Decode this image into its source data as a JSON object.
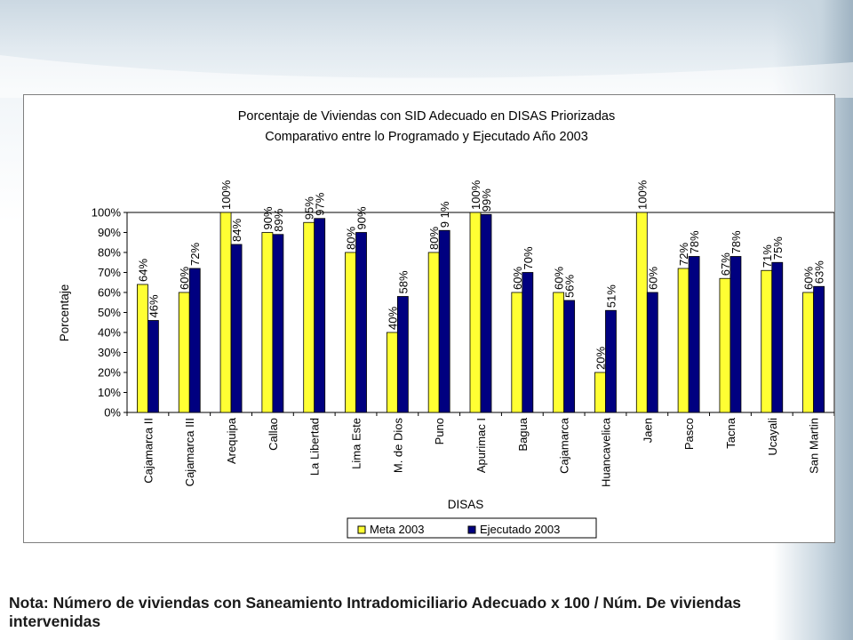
{
  "note": "Nota: Número de viviendas con Saneamiento Intradomiciliario Adecuado x 100 / Núm. De viviendas intervenidas",
  "colors": {
    "meta": "#ffff33",
    "ejecutado": "#000080",
    "plot_border": "#000000",
    "frame_border": "#7f7f7f"
  },
  "chart_data": {
    "type": "bar",
    "title": "Porcentaje de Viviendas con SID Adecuado en DISAS Priorizadas",
    "subtitle": "Comparativo entre lo Programado y Ejecutado Año 2003",
    "xlabel": "DISAS",
    "ylabel": "Porcentaje",
    "ylim": [
      0,
      100
    ],
    "yticks": [
      "0%",
      "10%",
      "20%",
      "30%",
      "40%",
      "50%",
      "60%",
      "70%",
      "80%",
      "90%",
      "100%"
    ],
    "grid": false,
    "legend_position": "bottom",
    "categories": [
      "Cajamarca II",
      "Cajamarca III",
      "Arequipa",
      "Callao",
      "La Libertad",
      "Lima Este",
      "M. de Dios",
      "Puno",
      "Apurimac I",
      "Bagua",
      "Cajamarca",
      "Huancavelica",
      "Jaen",
      "Pasco",
      "Tacna",
      "Ucayali",
      "San Martin"
    ],
    "series": [
      {
        "name": "Meta 2003",
        "values": [
          64,
          60,
          100,
          90,
          95,
          80,
          40,
          80,
          100,
          60,
          60,
          20,
          100,
          72,
          67,
          71,
          60
        ],
        "labels": [
          "64%",
          "60%",
          "100%",
          "90%",
          "95%",
          "80%",
          "40%",
          "80%",
          "100%",
          "60%",
          "60%",
          "20%",
          "100%",
          "72%",
          "67%",
          "71%",
          "60%"
        ]
      },
      {
        "name": "Ejecutado 2003",
        "values": [
          46,
          72,
          84,
          89,
          97,
          90,
          58,
          91,
          99,
          70,
          56,
          51,
          60,
          78,
          78,
          75,
          63
        ],
        "labels": [
          "46%",
          "72%",
          "84%",
          "89%",
          "97%",
          "90%",
          "58%",
          "9 1%",
          "99%",
          "70%",
          "56%",
          "51%",
          "60%",
          "78%",
          "78%",
          "75%",
          "63%"
        ]
      }
    ]
  }
}
